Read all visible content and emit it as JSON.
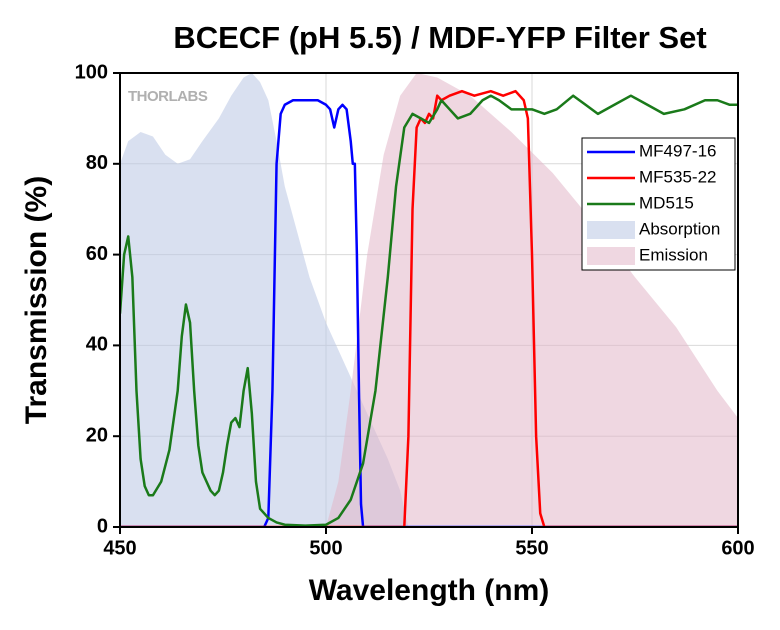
{
  "chart_data": {
    "type": "line",
    "title": "BCECF (pH 5.5) / MDF-YFP Filter Set",
    "xlabel": "Wavelength (nm)",
    "ylabel": "Transmission (%)",
    "watermark": "THORLABS",
    "xlim": [
      450,
      600
    ],
    "ylim": [
      0,
      100
    ],
    "xticks": [
      450,
      500,
      550,
      600
    ],
    "yticks": [
      0,
      20,
      40,
      60,
      80,
      100
    ],
    "grid": true,
    "legend": "upper right",
    "series": [
      {
        "name": "Absorption",
        "style": "area",
        "color": "#b9c6e3",
        "x": [
          450,
          452,
          455,
          458,
          461,
          464,
          467,
          470,
          474,
          477,
          480,
          482,
          484,
          486,
          488,
          490,
          493,
          496,
          500,
          505,
          510,
          515,
          518,
          520
        ],
        "values": [
          80,
          85,
          87,
          86,
          82,
          80,
          81,
          85,
          90,
          95,
          99,
          100,
          98,
          94,
          85,
          75,
          65,
          55,
          45,
          35,
          25,
          15,
          8,
          0
        ]
      },
      {
        "name": "Emission",
        "style": "area",
        "color": "#e2b6c9",
        "x": [
          500,
          503,
          506,
          510,
          514,
          518,
          522,
          527,
          535,
          545,
          555,
          565,
          575,
          585,
          590,
          595,
          600
        ],
        "values": [
          0,
          10,
          30,
          60,
          82,
          95,
          100,
          99,
          95,
          87,
          78,
          67,
          55,
          44,
          37,
          30,
          24
        ]
      },
      {
        "name": "MF497-16",
        "style": "line",
        "color": "#0000ff",
        "x": [
          450,
          485,
          486,
          487,
          488,
          489,
          490,
          492,
          495,
          498,
          500,
          501,
          502,
          503,
          504,
          505,
          506,
          506.5,
          507,
          507.5,
          508,
          508.5,
          509,
          510,
          600
        ],
        "values": [
          0,
          0,
          2,
          30,
          80,
          91,
          93,
          94,
          94,
          94,
          93,
          92,
          88,
          92,
          93,
          92,
          85,
          80,
          80,
          60,
          30,
          5,
          0,
          0,
          0
        ]
      },
      {
        "name": "MF535-22",
        "style": "line",
        "color": "#ff0000",
        "x": [
          450,
          519,
          520,
          521,
          522,
          523,
          524,
          525,
          526,
          527,
          528,
          530,
          533,
          536,
          540,
          543,
          546,
          548,
          549,
          550,
          551,
          552,
          553,
          600
        ],
        "values": [
          0,
          0,
          20,
          70,
          88,
          90,
          89,
          91,
          90,
          95,
          94,
          95,
          96,
          95,
          96,
          95,
          96,
          94,
          90,
          60,
          20,
          3,
          0,
          0
        ]
      },
      {
        "name": "MD515",
        "style": "line",
        "color": "#1a7a1a",
        "x": [
          450,
          451,
          452,
          453,
          454,
          455,
          456,
          457,
          458,
          460,
          462,
          464,
          465,
          466,
          467,
          468,
          469,
          470,
          471,
          472,
          473,
          474,
          475,
          476,
          477,
          478,
          479,
          480,
          481,
          482,
          483,
          484,
          486,
          488,
          490,
          495,
          500,
          503,
          506,
          509,
          512,
          515,
          517,
          519,
          521,
          523,
          525,
          527,
          528,
          530,
          532,
          535,
          538,
          540,
          542,
          545,
          548,
          550,
          553,
          556,
          560,
          563,
          566,
          570,
          574,
          578,
          582,
          587,
          592,
          595,
          598,
          600
        ],
        "values": [
          47,
          60,
          64,
          55,
          30,
          15,
          9,
          7,
          7,
          10,
          17,
          30,
          42,
          49,
          45,
          30,
          18,
          12,
          10,
          8,
          7,
          8,
          12,
          18,
          23,
          24,
          22,
          30,
          35,
          25,
          10,
          4,
          2,
          1,
          0.5,
          0.3,
          0.5,
          2,
          6,
          14,
          30,
          55,
          75,
          88,
          91,
          90,
          89,
          92,
          94,
          92,
          90,
          91,
          94,
          95,
          94,
          92,
          92,
          92,
          91,
          92,
          95,
          93,
          91,
          93,
          95,
          93,
          91,
          92,
          94,
          94,
          93,
          93
        ]
      }
    ]
  }
}
